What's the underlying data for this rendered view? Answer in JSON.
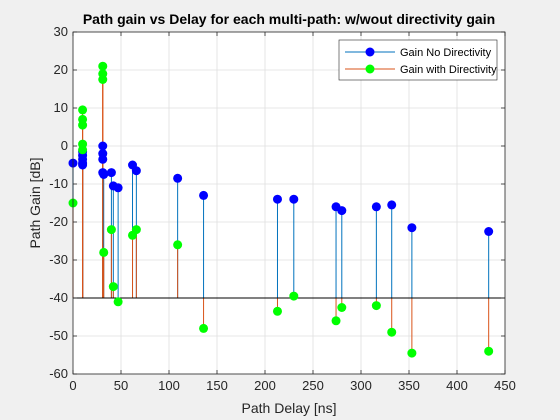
{
  "chart_data": {
    "type": "stem",
    "title": "Path gain vs Delay for each multi-path: w/wout directivity gain",
    "xlabel": "Path Delay [ns]",
    "ylabel": "Path Gain [dB]",
    "xlim": [
      0,
      450
    ],
    "ylim": [
      -60,
      30
    ],
    "xticks": [
      "0",
      "50",
      "100",
      "150",
      "200",
      "250",
      "300",
      "350",
      "400",
      "450"
    ],
    "yticks": [
      "-60",
      "-50",
      "-40",
      "-30",
      "-20",
      "-10",
      "0",
      "10",
      "20",
      "30"
    ],
    "baseline": -40,
    "grid": true,
    "legend_position": "top-right",
    "series": [
      {
        "name": "Gain No Directivity",
        "line_color": "#0072BD",
        "marker_color": "#0000ff",
        "x": [
          0,
          10,
          10,
          10,
          10,
          10,
          31,
          31,
          31,
          31,
          32,
          40,
          42,
          47,
          62,
          66,
          109,
          136,
          213,
          230,
          274,
          280,
          316,
          332,
          353,
          433
        ],
        "y": [
          -4.5,
          -1.5,
          -2.5,
          -3.5,
          -4.5,
          -5,
          0,
          -2,
          -3.5,
          -7,
          -7.5,
          -7,
          -10.5,
          -11,
          -5,
          -6.5,
          -8.5,
          -13,
          -14,
          -14,
          -16,
          -17,
          -16,
          -15.5,
          -21.5,
          -22.5
        ]
      },
      {
        "name": "Gain with Directivity",
        "line_color": "#D95319",
        "marker_color": "#00ff00",
        "x": [
          0,
          10,
          10,
          10,
          10,
          10,
          31,
          31,
          31,
          32,
          40,
          42,
          47,
          62,
          66,
          109,
          136,
          213,
          230,
          274,
          280,
          316,
          332,
          353,
          433
        ],
        "y": [
          -15,
          9.5,
          7,
          5.5,
          0.5,
          -1,
          21,
          19,
          17.5,
          -28,
          -22,
          -37,
          -41,
          -23.5,
          -22,
          -26,
          -48,
          -43.5,
          -39.5,
          -46,
          -42.5,
          -42,
          -49,
          -54.5,
          -54
        ]
      }
    ]
  }
}
